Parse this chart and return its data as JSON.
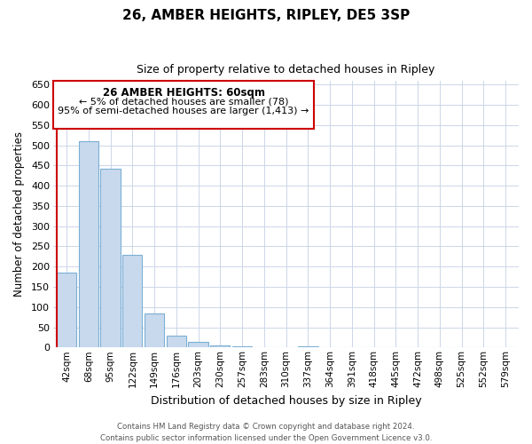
{
  "title": "26, AMBER HEIGHTS, RIPLEY, DE5 3SP",
  "subtitle": "Size of property relative to detached houses in Ripley",
  "xlabel": "Distribution of detached houses by size in Ripley",
  "ylabel": "Number of detached properties",
  "categories": [
    "42sqm",
    "68sqm",
    "95sqm",
    "122sqm",
    "149sqm",
    "176sqm",
    "203sqm",
    "230sqm",
    "257sqm",
    "283sqm",
    "310sqm",
    "337sqm",
    "364sqm",
    "391sqm",
    "418sqm",
    "445sqm",
    "472sqm",
    "498sqm",
    "525sqm",
    "552sqm",
    "579sqm"
  ],
  "values": [
    185,
    510,
    443,
    228,
    85,
    29,
    14,
    4,
    2,
    0,
    0,
    3,
    1,
    0,
    0,
    1,
    0,
    0,
    0,
    0,
    1
  ],
  "bar_facecolor": "#c8d9ee",
  "bar_edgecolor": "#7bafd4",
  "marker_line_color": "#cc0000",
  "ylim": [
    0,
    660
  ],
  "yticks": [
    0,
    50,
    100,
    150,
    200,
    250,
    300,
    350,
    400,
    450,
    500,
    550,
    600,
    650
  ],
  "annotation_title": "26 AMBER HEIGHTS: 60sqm",
  "annotation_line1": "← 5% of detached houses are smaller (78)",
  "annotation_line2": "95% of semi-detached houses are larger (1,413) →",
  "annotation_box_edge": "#cc0000",
  "footer_line1": "Contains HM Land Registry data © Crown copyright and database right 2024.",
  "footer_line2": "Contains public sector information licensed under the Open Government Licence v3.0.",
  "background_color": "#ffffff",
  "grid_color": "#ccd6e8"
}
